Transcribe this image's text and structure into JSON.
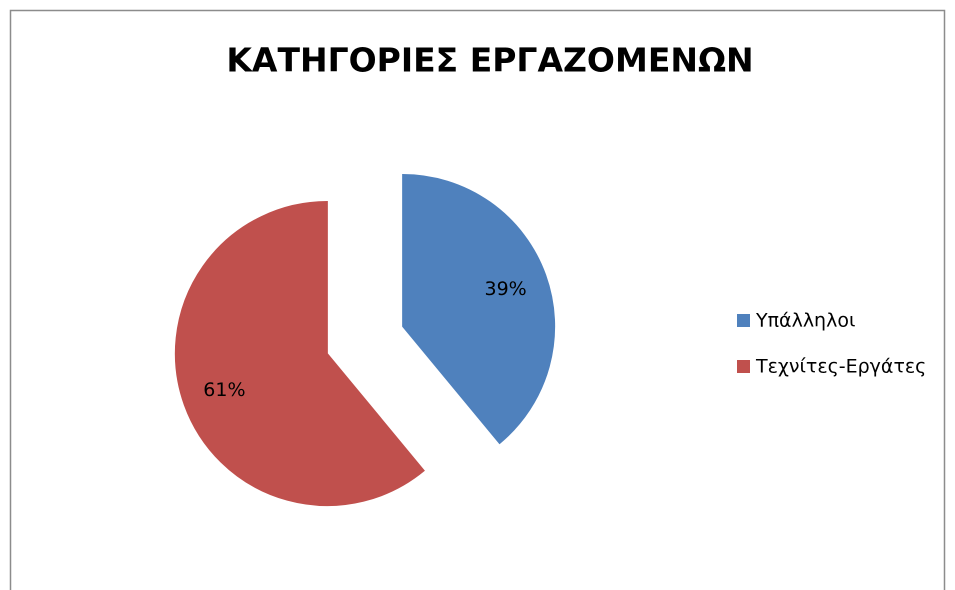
{
  "chart_data": {
    "type": "pie",
    "title": "ΚΑΤΗΓΟΡΙΕΣ ΕΡΓΑΖΟΜΕΝΩΝ",
    "categories": [
      "Υπάλληλοι",
      "Τεχνίτες-Εργάτες"
    ],
    "values": [
      39,
      61
    ],
    "value_labels": [
      "39%",
      "61%"
    ],
    "colors": [
      "#4f81bd",
      "#c0504d"
    ],
    "exploded": true,
    "legend": "right"
  }
}
